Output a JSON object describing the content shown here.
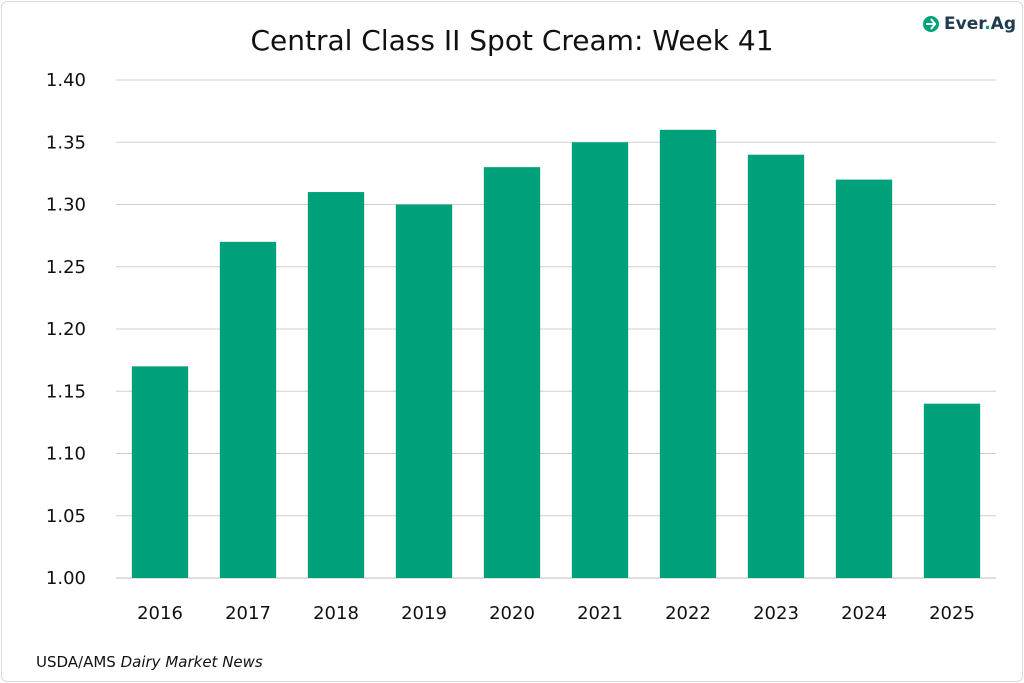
{
  "logo": {
    "name": "Ever",
    "suffix": "Ag",
    "sep": "."
  },
  "source": {
    "prefix": "USDA/AMS ",
    "italic": "Dairy Market News"
  },
  "colors": {
    "bar": "#00a07a",
    "grid": "#d0d0d0",
    "axis": "#bfbfbf"
  },
  "chart_data": {
    "type": "bar",
    "title": "Central Class II Spot Cream: Week 41",
    "categories": [
      "2016",
      "2017",
      "2018",
      "2019",
      "2020",
      "2021",
      "2022",
      "2023",
      "2024",
      "2025"
    ],
    "values": [
      1.17,
      1.27,
      1.31,
      1.3,
      1.33,
      1.35,
      1.36,
      1.34,
      1.32,
      1.14
    ],
    "ylim": [
      1.0,
      1.4
    ],
    "yticks": [
      "1.00",
      "1.05",
      "1.10",
      "1.15",
      "1.20",
      "1.25",
      "1.30",
      "1.35",
      "1.40"
    ],
    "grid": true,
    "xlabel": "",
    "ylabel": ""
  }
}
